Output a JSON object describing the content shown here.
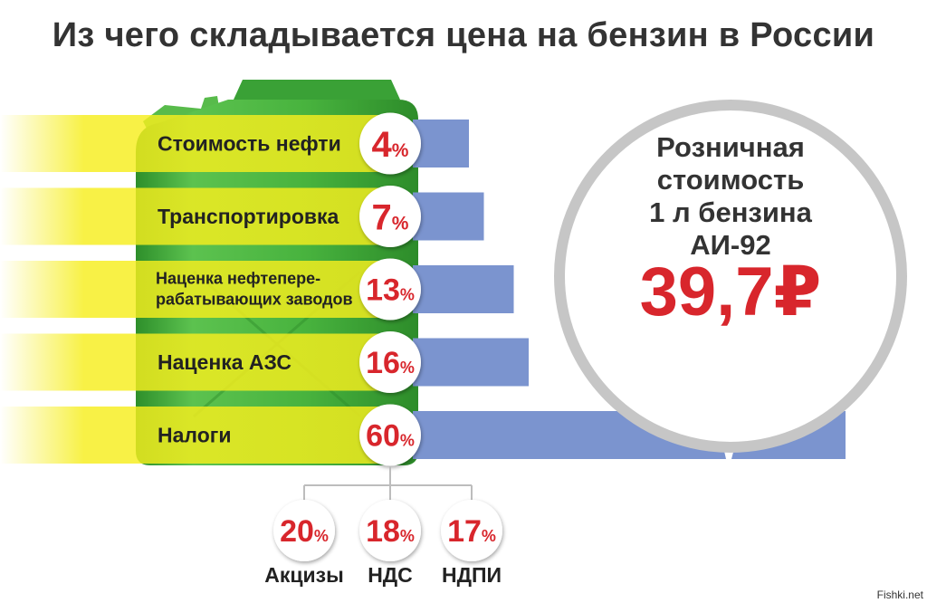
{
  "title": "Из чего складывается цена на бензин в России",
  "colors": {
    "bar": "#7b94cf",
    "accent": "#d8262c",
    "highlight": "#f6ee1e",
    "canister": "#3fae3a",
    "ring": "#c6c6c6"
  },
  "retail": {
    "lines": [
      "Розничная",
      "стоимость",
      "1 л бензина",
      "АИ-92"
    ],
    "price": "39,7",
    "currency": "₽"
  },
  "chart_data": {
    "type": "bar",
    "orientation": "horizontal",
    "title": "Из чего складывается цена на бензин в России",
    "unit": "%",
    "categories": [
      [
        "Стоимость нефти"
      ],
      [
        "Транспортировка"
      ],
      [
        "Наценка нефтепере-",
        "рабатывающих заводов"
      ],
      [
        "Наценка АЗС"
      ],
      [
        "Налоги"
      ]
    ],
    "values": [
      4,
      7,
      13,
      16,
      60
    ],
    "value_labels": [
      "4",
      "7",
      "13",
      "16",
      "60"
    ],
    "breakdown": {
      "parent": "Налоги",
      "categories": [
        "Акцизы",
        "НДС",
        "НДПИ"
      ],
      "values": [
        20,
        18,
        17
      ],
      "value_labels": [
        "20",
        "18",
        "17"
      ]
    }
  },
  "watermark": "Fishki.net"
}
